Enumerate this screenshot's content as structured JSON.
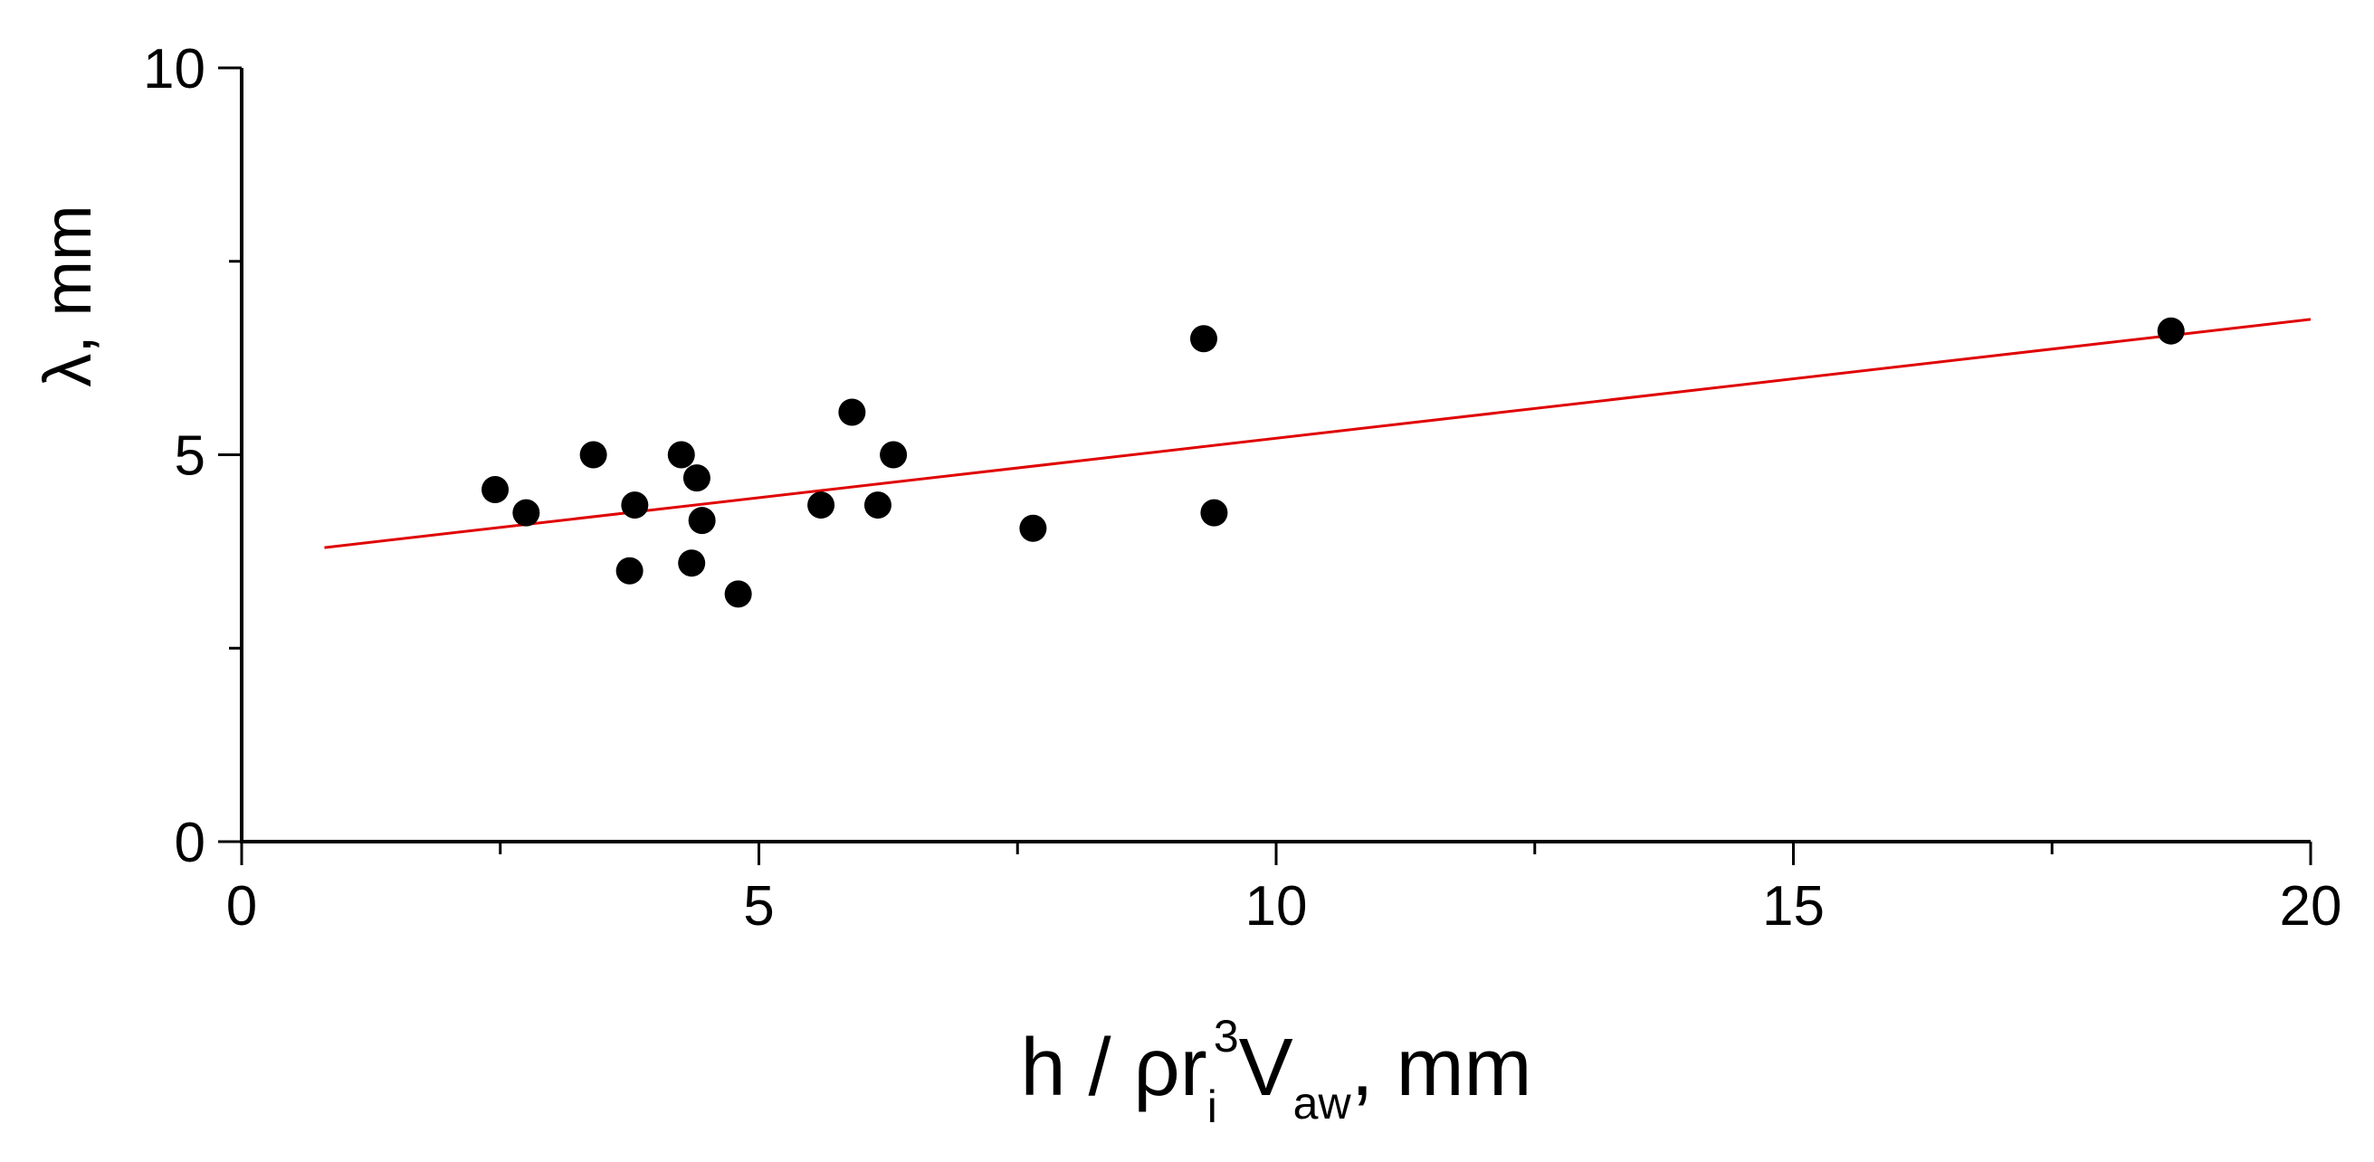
{
  "chart_data": {
    "type": "scatter",
    "title": "",
    "xlabel": {
      "main": "h / ρr",
      "sub1": "i",
      "sup": "3",
      "mid": "V",
      "sub2": "aw",
      "tail": ", mm"
    },
    "ylabel": "λ, mm",
    "xlim": [
      0,
      20
    ],
    "ylim": [
      0,
      10
    ],
    "x_ticks": [
      0,
      5,
      10,
      15,
      20
    ],
    "y_ticks": [
      0,
      5,
      10
    ],
    "x_tick_labels": [
      "0",
      "5",
      "10",
      "15",
      "20"
    ],
    "y_tick_labels": [
      "0",
      "5",
      "10"
    ],
    "grid": false,
    "series": [
      {
        "values": [
          {
            "x": 2.45,
            "y": 4.55
          },
          {
            "x": 2.75,
            "y": 4.25
          },
          {
            "x": 3.4,
            "y": 5.0
          },
          {
            "x": 3.75,
            "y": 3.5
          },
          {
            "x": 3.8,
            "y": 4.35
          },
          {
            "x": 4.25,
            "y": 5.0
          },
          {
            "x": 4.35,
            "y": 3.6
          },
          {
            "x": 4.4,
            "y": 4.7
          },
          {
            "x": 4.45,
            "y": 4.15
          },
          {
            "x": 4.8,
            "y": 3.2
          },
          {
            "x": 5.6,
            "y": 4.35
          },
          {
            "x": 5.9,
            "y": 5.55
          },
          {
            "x": 6.15,
            "y": 4.35
          },
          {
            "x": 6.3,
            "y": 5.0
          },
          {
            "x": 7.65,
            "y": 4.05
          },
          {
            "x": 9.3,
            "y": 6.5
          },
          {
            "x": 9.4,
            "y": 4.25
          },
          {
            "x": 18.65,
            "y": 6.6
          }
        ],
        "color": "#000000"
      }
    ],
    "fit_line": {
      "x": [
        0.8,
        20
      ],
      "y": [
        3.8,
        6.75
      ],
      "color": "#e00000"
    }
  }
}
